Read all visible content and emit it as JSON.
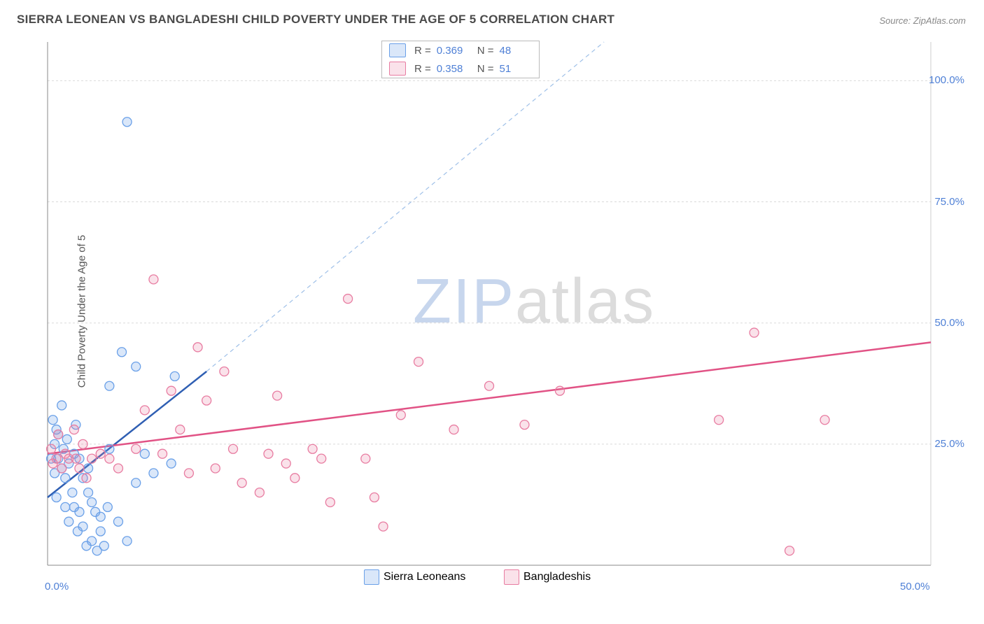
{
  "title": "SIERRA LEONEAN VS BANGLADESHI CHILD POVERTY UNDER THE AGE OF 5 CORRELATION CHART",
  "source_label": "Source: ZipAtlas.com",
  "y_axis_label": "Child Poverty Under the Age of 5",
  "watermark": {
    "zip": "ZIP",
    "atlas": "atlas"
  },
  "chart": {
    "type": "scatter",
    "background_color": "#ffffff",
    "grid_color": "#d9d9d9",
    "axis_color": "#888888",
    "text_color": "#555555",
    "tick_color": "#4f80d6",
    "xlim": [
      0,
      50
    ],
    "ylim": [
      0,
      108
    ],
    "x_ticks": [
      0,
      50
    ],
    "x_tick_labels": [
      "0.0%",
      "50.0%"
    ],
    "y_ticks": [
      25,
      50,
      75,
      100
    ],
    "y_tick_labels": [
      "25.0%",
      "50.0%",
      "75.0%",
      "100.0%"
    ],
    "series": [
      {
        "name": "Sierra Leoneans",
        "color": "#6aa0e8",
        "fill": "rgba(106,160,232,0.25)",
        "marker_radius": 6.5,
        "R": "0.369",
        "N": "48",
        "trend": {
          "x1": 0,
          "y1": 14,
          "x2": 9,
          "y2": 40,
          "width": 2.5,
          "dash": "none",
          "color": "#2f5fb3"
        },
        "trend_ext": {
          "x1": 9,
          "y1": 40,
          "x2": 31.5,
          "y2": 108,
          "width": 1.2,
          "dash": "6,5",
          "color": "#9fc0e8"
        },
        "points": [
          [
            0.2,
            22
          ],
          [
            0.3,
            30
          ],
          [
            0.4,
            19
          ],
          [
            0.4,
            25
          ],
          [
            0.5,
            14
          ],
          [
            0.5,
            28
          ],
          [
            0.6,
            27
          ],
          [
            0.6,
            22
          ],
          [
            0.8,
            20
          ],
          [
            0.8,
            33
          ],
          [
            0.9,
            24
          ],
          [
            1.0,
            18
          ],
          [
            1.0,
            12
          ],
          [
            1.1,
            26
          ],
          [
            1.2,
            21
          ],
          [
            1.2,
            9
          ],
          [
            1.4,
            15
          ],
          [
            1.5,
            23
          ],
          [
            1.5,
            12
          ],
          [
            1.6,
            29
          ],
          [
            1.7,
            7
          ],
          [
            1.8,
            11
          ],
          [
            1.8,
            22
          ],
          [
            2.0,
            8
          ],
          [
            2.0,
            18
          ],
          [
            2.2,
            4
          ],
          [
            2.3,
            15
          ],
          [
            2.3,
            20
          ],
          [
            2.5,
            13
          ],
          [
            2.5,
            5
          ],
          [
            2.7,
            11
          ],
          [
            2.8,
            3
          ],
          [
            3.0,
            7
          ],
          [
            3.0,
            10
          ],
          [
            3.2,
            4
          ],
          [
            3.4,
            12
          ],
          [
            3.5,
            24
          ],
          [
            3.5,
            37
          ],
          [
            4.0,
            9
          ],
          [
            4.2,
            44
          ],
          [
            4.5,
            5
          ],
          [
            4.5,
            91.5
          ],
          [
            5.0,
            17
          ],
          [
            5.0,
            41
          ],
          [
            5.5,
            23
          ],
          [
            6.0,
            19
          ],
          [
            7.0,
            21
          ],
          [
            7.2,
            39
          ]
        ]
      },
      {
        "name": "Bangladeshis",
        "color": "#e87ca1",
        "fill": "rgba(232,124,161,0.22)",
        "marker_radius": 6.5,
        "R": "0.358",
        "N": "51",
        "trend": {
          "x1": 0,
          "y1": 23,
          "x2": 50,
          "y2": 46,
          "width": 2.5,
          "dash": "none",
          "color": "#e15285"
        },
        "points": [
          [
            0.2,
            24
          ],
          [
            0.3,
            21
          ],
          [
            0.5,
            22
          ],
          [
            0.6,
            27
          ],
          [
            0.8,
            20
          ],
          [
            1.0,
            23
          ],
          [
            1.2,
            22
          ],
          [
            1.5,
            28
          ],
          [
            1.6,
            22
          ],
          [
            1.8,
            20
          ],
          [
            2.0,
            25
          ],
          [
            2.2,
            18
          ],
          [
            2.5,
            22
          ],
          [
            3.0,
            23
          ],
          [
            3.5,
            22
          ],
          [
            4.0,
            20
          ],
          [
            5.0,
            24
          ],
          [
            5.5,
            32
          ],
          [
            6.0,
            59
          ],
          [
            6.5,
            23
          ],
          [
            7.0,
            36
          ],
          [
            7.5,
            28
          ],
          [
            8.0,
            19
          ],
          [
            8.5,
            45
          ],
          [
            9.0,
            34
          ],
          [
            9.5,
            20
          ],
          [
            10.0,
            40
          ],
          [
            10.5,
            24
          ],
          [
            11.0,
            17
          ],
          [
            12.0,
            15
          ],
          [
            12.5,
            23
          ],
          [
            13.0,
            35
          ],
          [
            13.5,
            21
          ],
          [
            14.0,
            18
          ],
          [
            15.0,
            24
          ],
          [
            15.5,
            22
          ],
          [
            16.0,
            13
          ],
          [
            17.0,
            55
          ],
          [
            18.0,
            22
          ],
          [
            18.5,
            14
          ],
          [
            19.0,
            8
          ],
          [
            20.0,
            31
          ],
          [
            21.0,
            42
          ],
          [
            23.0,
            28
          ],
          [
            25.0,
            37
          ],
          [
            27.0,
            29
          ],
          [
            29.0,
            36
          ],
          [
            38.0,
            30
          ],
          [
            40.0,
            48
          ],
          [
            42.0,
            3
          ],
          [
            44.0,
            30
          ]
        ]
      }
    ]
  },
  "legend_bottom": [
    {
      "label": "Sierra Leoneans",
      "fill": "rgba(106,160,232,0.25)",
      "border": "#6aa0e8"
    },
    {
      "label": "Bangladeshis",
      "fill": "rgba(232,124,161,0.22)",
      "border": "#e87ca1"
    }
  ]
}
